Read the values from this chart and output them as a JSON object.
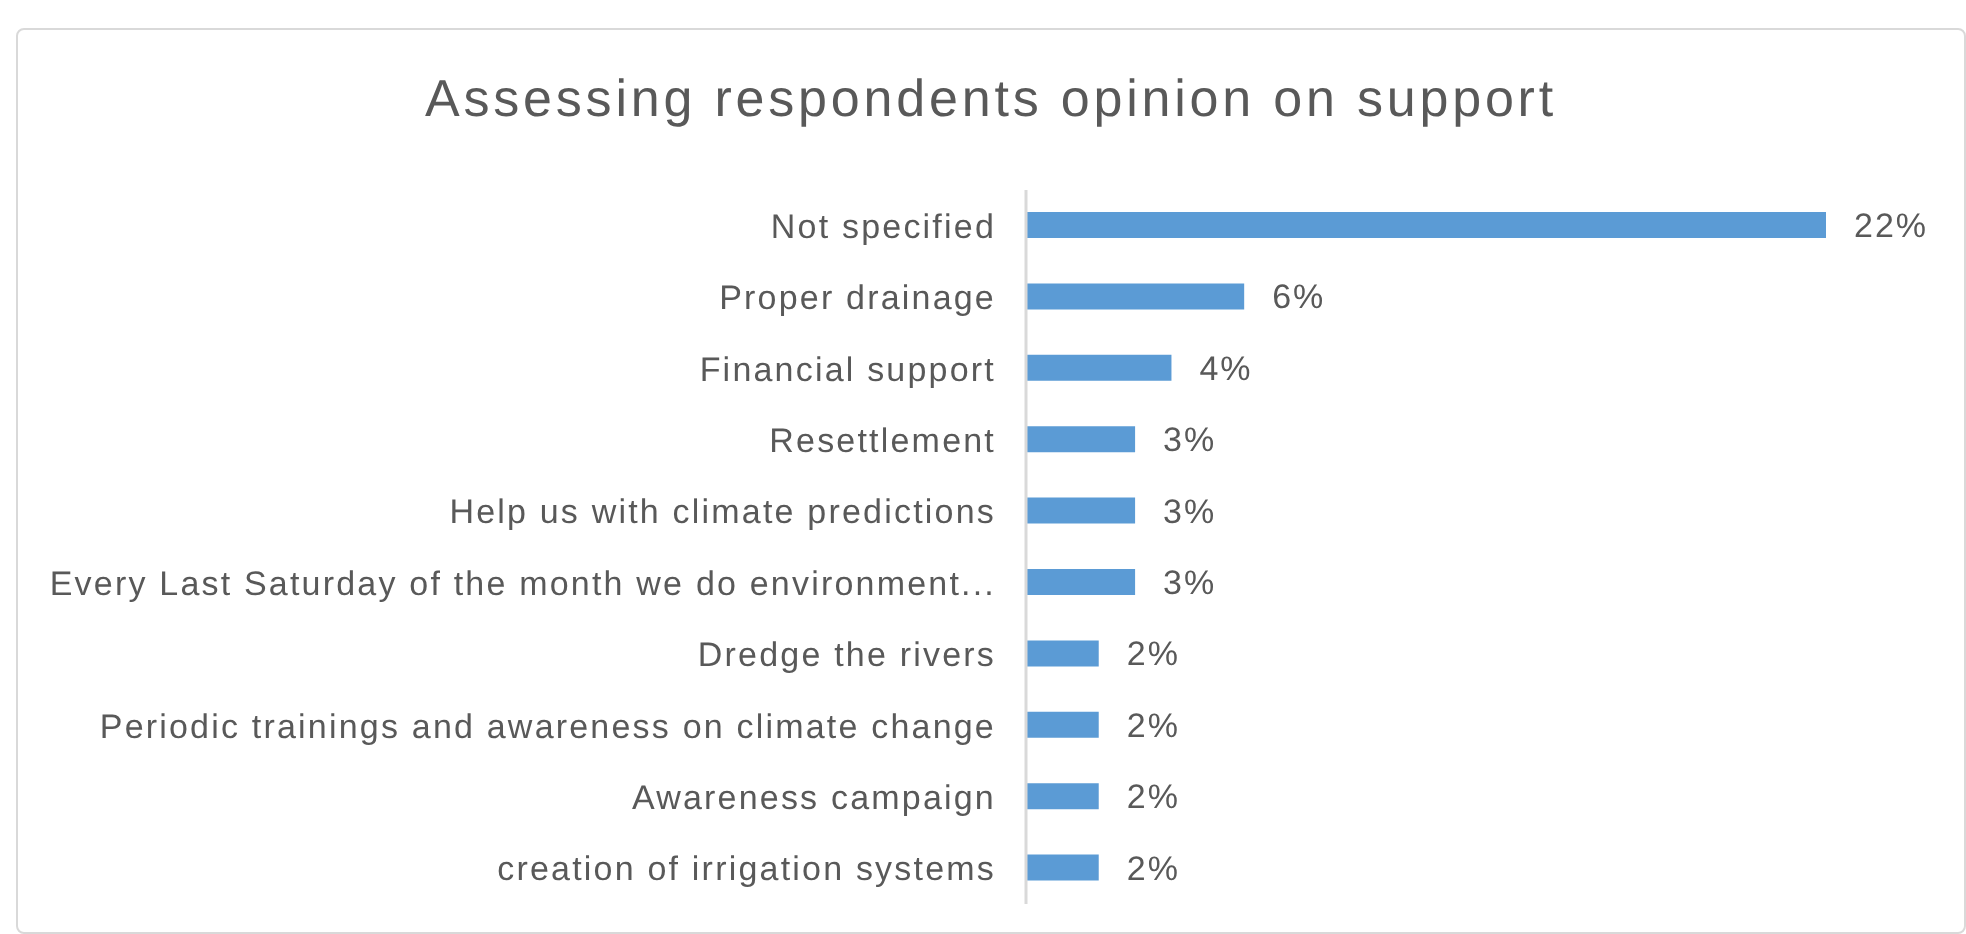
{
  "chart_data": {
    "type": "bar",
    "orientation": "horizontal",
    "title": "Assessing respondents opinion on support",
    "categories": [
      "Not specified",
      "Proper drainage",
      "Financial support",
      "Resettlement",
      "Help us with climate predictions",
      "Every Last Saturday of the month we do environment...",
      "Dredge the rivers",
      "Periodic trainings and awareness on climate change",
      "Awareness campaign",
      "creation of irrigation systems"
    ],
    "values": [
      22,
      6,
      4,
      3,
      3,
      3,
      2,
      2,
      2,
      2
    ],
    "value_labels": [
      "22%",
      "6%",
      "4%",
      "3%",
      "3%",
      "3%",
      "2%",
      "2%",
      "2%",
      "2%"
    ],
    "color": "#5b9bd5",
    "tick_labels": "y"
  }
}
